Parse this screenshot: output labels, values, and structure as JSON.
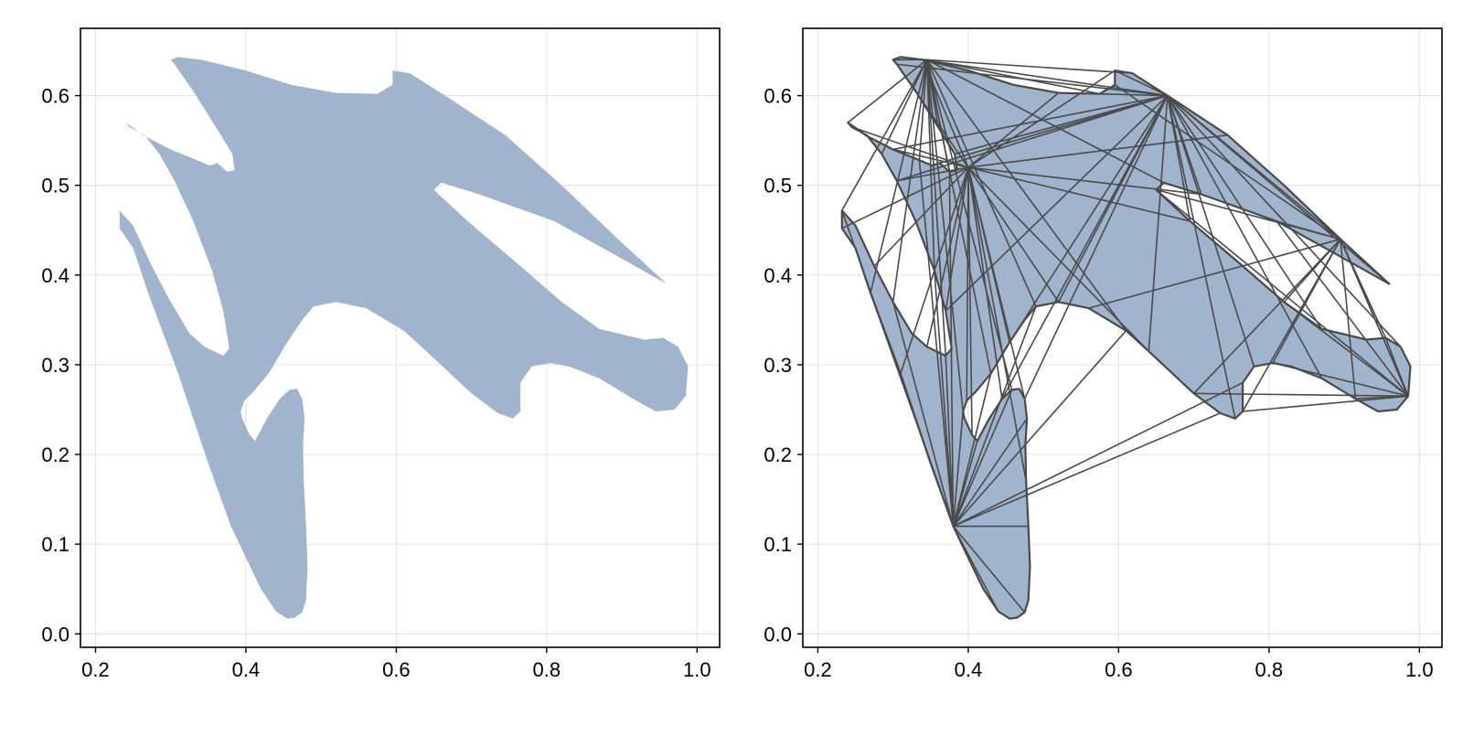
{
  "chart_data": [
    {
      "type": "area",
      "title": "",
      "xlabel": "",
      "ylabel": "",
      "xlim": [
        0.18,
        1.03
      ],
      "ylim": [
        -0.015,
        0.675
      ],
      "xticks": [
        0.2,
        0.4,
        0.6,
        0.8,
        1.0
      ],
      "xtick_labels": [
        "0.2",
        "0.4",
        "0.6",
        "0.8",
        "1.0"
      ],
      "yticks": [
        0.0,
        0.1,
        0.2,
        0.3,
        0.4,
        0.5,
        0.6
      ],
      "ytick_labels": [
        "0.0",
        "0.1",
        "0.2",
        "0.3",
        "0.4",
        "0.5",
        "0.6"
      ],
      "grid": true,
      "fill_color": "#a0b5cd",
      "polygon_name": "shape",
      "show_edges": false
    },
    {
      "type": "area",
      "title": "",
      "xlabel": "",
      "ylabel": "",
      "xlim": [
        0.18,
        1.03
      ],
      "ylim": [
        -0.015,
        0.675
      ],
      "xticks": [
        0.2,
        0.4,
        0.6,
        0.8,
        1.0
      ],
      "xtick_labels": [
        "0.2",
        "0.4",
        "0.6",
        "0.8",
        "1.0"
      ],
      "yticks": [
        0.0,
        0.1,
        0.2,
        0.3,
        0.4,
        0.5,
        0.6
      ],
      "ytick_labels": [
        "0.0",
        "0.1",
        "0.2",
        "0.3",
        "0.4",
        "0.5",
        "0.6"
      ],
      "grid": true,
      "fill_color": "#a0b5cd",
      "edge_color": "#4a4a4a",
      "polygon_name": "triangulated shape",
      "show_edges": true,
      "triangle_fan_hubs": [
        [
          0.38,
          0.12
        ],
        [
          0.4,
          0.52
        ],
        [
          0.985,
          0.265
        ],
        [
          0.345,
          0.64
        ],
        [
          0.665,
          0.6
        ],
        [
          0.895,
          0.44
        ]
      ]
    }
  ],
  "shape": {
    "vertices": [
      [
        0.3,
        0.64
      ],
      [
        0.31,
        0.643
      ],
      [
        0.34,
        0.64
      ],
      [
        0.4,
        0.628
      ],
      [
        0.46,
        0.612
      ],
      [
        0.52,
        0.603
      ],
      [
        0.575,
        0.602
      ],
      [
        0.595,
        0.612
      ],
      [
        0.595,
        0.628
      ],
      [
        0.618,
        0.625
      ],
      [
        0.665,
        0.6
      ],
      [
        0.745,
        0.556
      ],
      [
        0.82,
        0.5
      ],
      [
        0.895,
        0.44
      ],
      [
        0.96,
        0.39
      ],
      [
        0.875,
        0.43
      ],
      [
        0.81,
        0.46
      ],
      [
        0.71,
        0.49
      ],
      [
        0.66,
        0.503
      ],
      [
        0.65,
        0.495
      ],
      [
        0.695,
        0.46
      ],
      [
        0.765,
        0.41
      ],
      [
        0.82,
        0.37
      ],
      [
        0.87,
        0.34
      ],
      [
        0.93,
        0.328
      ],
      [
        0.955,
        0.33
      ],
      [
        0.975,
        0.32
      ],
      [
        0.988,
        0.298
      ],
      [
        0.985,
        0.265
      ],
      [
        0.97,
        0.25
      ],
      [
        0.945,
        0.248
      ],
      [
        0.915,
        0.262
      ],
      [
        0.87,
        0.285
      ],
      [
        0.83,
        0.298
      ],
      [
        0.805,
        0.302
      ],
      [
        0.78,
        0.298
      ],
      [
        0.765,
        0.28
      ],
      [
        0.765,
        0.248
      ],
      [
        0.755,
        0.24
      ],
      [
        0.735,
        0.246
      ],
      [
        0.7,
        0.268
      ],
      [
        0.64,
        0.315
      ],
      [
        0.61,
        0.338
      ],
      [
        0.56,
        0.363
      ],
      [
        0.52,
        0.37
      ],
      [
        0.49,
        0.365
      ],
      [
        0.475,
        0.35
      ],
      [
        0.455,
        0.325
      ],
      [
        0.43,
        0.29
      ],
      [
        0.41,
        0.27
      ],
      [
        0.398,
        0.26
      ],
      [
        0.393,
        0.248
      ],
      [
        0.395,
        0.24
      ],
      [
        0.405,
        0.222
      ],
      [
        0.412,
        0.215
      ],
      [
        0.428,
        0.24
      ],
      [
        0.445,
        0.262
      ],
      [
        0.458,
        0.272
      ],
      [
        0.468,
        0.273
      ],
      [
        0.475,
        0.262
      ],
      [
        0.478,
        0.24
      ],
      [
        0.476,
        0.21
      ],
      [
        0.477,
        0.17
      ],
      [
        0.48,
        0.12
      ],
      [
        0.482,
        0.075
      ],
      [
        0.48,
        0.038
      ],
      [
        0.475,
        0.024
      ],
      [
        0.465,
        0.018
      ],
      [
        0.455,
        0.017
      ],
      [
        0.44,
        0.025
      ],
      [
        0.42,
        0.05
      ],
      [
        0.4,
        0.085
      ],
      [
        0.38,
        0.12
      ],
      [
        0.35,
        0.19
      ],
      [
        0.31,
        0.29
      ],
      [
        0.27,
        0.38
      ],
      [
        0.25,
        0.43
      ],
      [
        0.232,
        0.452
      ],
      [
        0.232,
        0.472
      ],
      [
        0.25,
        0.455
      ],
      [
        0.275,
        0.41
      ],
      [
        0.3,
        0.37
      ],
      [
        0.325,
        0.335
      ],
      [
        0.345,
        0.32
      ],
      [
        0.37,
        0.31
      ],
      [
        0.378,
        0.318
      ],
      [
        0.37,
        0.36
      ],
      [
        0.355,
        0.405
      ],
      [
        0.33,
        0.46
      ],
      [
        0.305,
        0.505
      ],
      [
        0.285,
        0.535
      ],
      [
        0.265,
        0.556
      ],
      [
        0.245,
        0.565
      ],
      [
        0.24,
        0.57
      ],
      [
        0.265,
        0.555
      ],
      [
        0.3,
        0.54
      ],
      [
        0.335,
        0.528
      ],
      [
        0.352,
        0.522
      ],
      [
        0.362,
        0.525
      ],
      [
        0.375,
        0.515
      ],
      [
        0.385,
        0.517
      ],
      [
        0.382,
        0.535
      ],
      [
        0.36,
        0.565
      ],
      [
        0.33,
        0.605
      ],
      [
        0.305,
        0.635
      ]
    ]
  }
}
